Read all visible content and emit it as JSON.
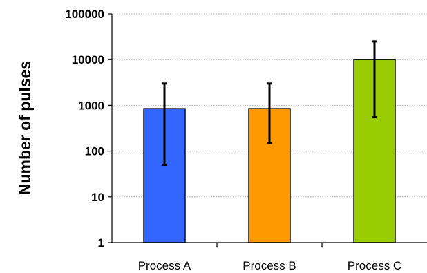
{
  "chart_data": {
    "type": "bar",
    "title": "",
    "xlabel": "",
    "ylabel": "Number of pulses",
    "yscale": "log",
    "ylim": [
      1,
      100000
    ],
    "y_ticks": [
      {
        "value": 1,
        "label": "1"
      },
      {
        "value": 10,
        "label": "10"
      },
      {
        "value": 100,
        "label": "100"
      },
      {
        "value": 1000,
        "label": "1000"
      },
      {
        "value": 10000,
        "label": "10000"
      },
      {
        "value": 100000,
        "label": "100000"
      }
    ],
    "grid": "horizontal dotted",
    "legend": "none",
    "categories": [
      "Process A",
      "Process B",
      "Process C"
    ],
    "values": [
      850,
      850,
      10000
    ],
    "error_low": [
      50,
      150,
      550
    ],
    "error_high": [
      3000,
      3000,
      25000
    ],
    "colors": [
      "#3366ff",
      "#ff9900",
      "#99cc00"
    ]
  }
}
